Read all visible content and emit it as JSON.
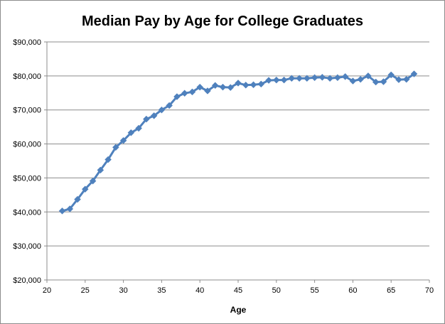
{
  "chart_data": {
    "type": "line",
    "title": "Median Pay by Age for College Graduates",
    "xlabel": "Age",
    "ylabel": "",
    "xlim": [
      20,
      70
    ],
    "ylim": [
      20000,
      90000
    ],
    "x_ticks": [
      20,
      25,
      30,
      35,
      40,
      45,
      50,
      55,
      60,
      65,
      70
    ],
    "y_ticks": [
      20000,
      30000,
      40000,
      50000,
      60000,
      70000,
      80000,
      90000
    ],
    "y_tick_labels": [
      "$20,000",
      "$30,000",
      "$40,000",
      "$50,000",
      "$60,000",
      "$70,000",
      "$80,000",
      "$90,000"
    ],
    "grid": "horizontal",
    "legend": "none",
    "series_color": "#4f81bd",
    "x": [
      22,
      23,
      24,
      25,
      26,
      27,
      28,
      29,
      30,
      31,
      32,
      33,
      34,
      35,
      36,
      37,
      38,
      39,
      40,
      41,
      42,
      43,
      44,
      45,
      46,
      47,
      48,
      49,
      50,
      51,
      52,
      53,
      54,
      55,
      56,
      57,
      58,
      59,
      60,
      61,
      62,
      63,
      64,
      65,
      66,
      67,
      68
    ],
    "values": [
      40300,
      40900,
      43700,
      46700,
      49100,
      52300,
      55400,
      59000,
      61000,
      63300,
      64600,
      67300,
      68300,
      70000,
      71300,
      73900,
      74900,
      75300,
      76700,
      75600,
      77200,
      76700,
      76600,
      77900,
      77300,
      77400,
      77600,
      78700,
      78800,
      78800,
      79300,
      79300,
      79300,
      79500,
      79600,
      79300,
      79500,
      79800,
      78500,
      79000,
      80000,
      78200,
      78300,
      80300,
      78900,
      79000,
      80600
    ]
  }
}
